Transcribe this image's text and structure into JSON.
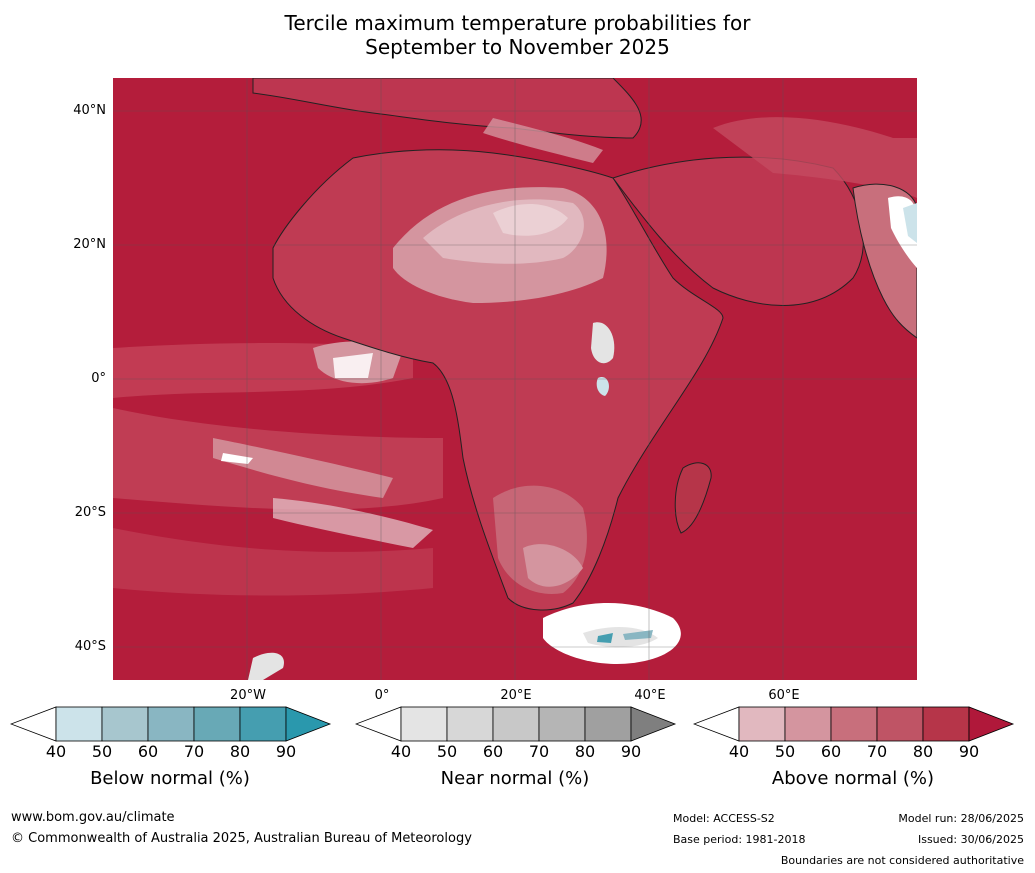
{
  "title_line1": "Tercile maximum temperature probabilities for",
  "title_line2": "September to November 2025",
  "lat_labels": [
    "40°N",
    "20°N",
    "0°",
    "20°S",
    "40°S"
  ],
  "lon_labels": [
    "20°W",
    "0°",
    "20°E",
    "40°E",
    "60°E"
  ],
  "legends": [
    {
      "title": "Below normal (%)",
      "ticks": [
        "40",
        "50",
        "60",
        "70",
        "80",
        "90"
      ],
      "colors": [
        "#ffffff",
        "#cce3ea",
        "#a7c6ce",
        "#89b6c2",
        "#68a9b6",
        "#459eb0",
        "#2a98ad"
      ]
    },
    {
      "title": "Near normal (%)",
      "ticks": [
        "40",
        "50",
        "60",
        "70",
        "80",
        "90"
      ],
      "colors": [
        "#ffffff",
        "#e4e4e4",
        "#d7d7d7",
        "#c8c8c8",
        "#b5b5b5",
        "#a0a0a0",
        "#7f7f7f"
      ]
    },
    {
      "title": "Above normal (%)",
      "ticks": [
        "40",
        "50",
        "60",
        "70",
        "80",
        "90"
      ],
      "colors": [
        "#ffffff",
        "#e1b8bf",
        "#d4959f",
        "#c86f7c",
        "#bf5465",
        "#b63549",
        "#b0183a"
      ]
    }
  ],
  "footer": {
    "website": "www.bom.gov.au/climate",
    "copyright": "© Commonwealth of Australia 2025, Australian Bureau of Meteorology",
    "model": "Model: ACCESS-S2",
    "base_period": "Base period: 1981-2018",
    "model_run": "Model run: 28/06/2025",
    "issued": "Issued: 30/06/2025",
    "disclaimer": "Boundaries are not considered authoritative"
  }
}
